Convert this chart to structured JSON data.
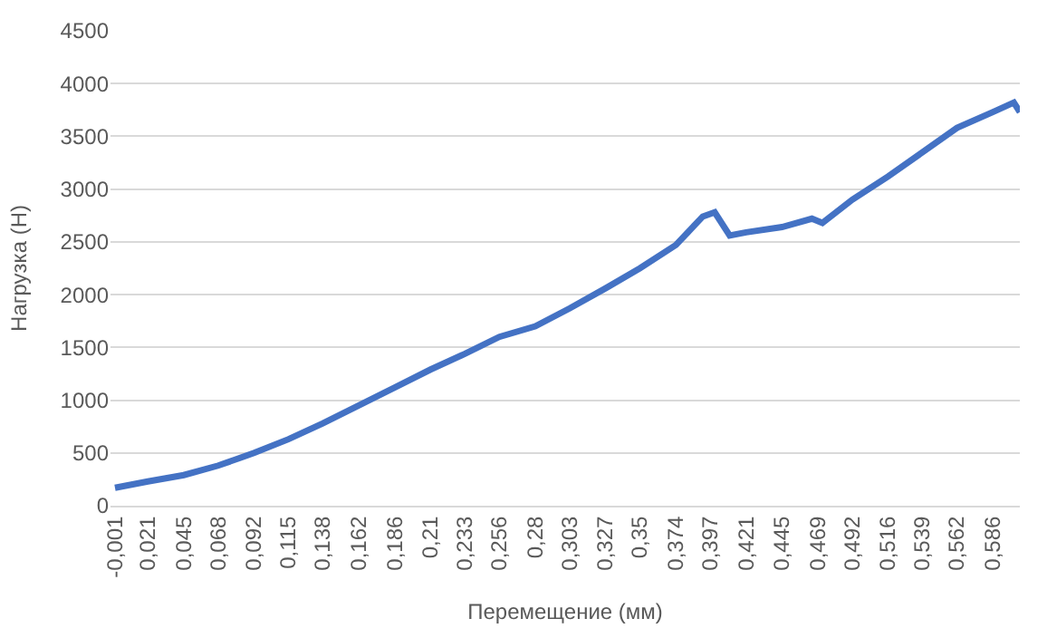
{
  "chart_data": {
    "type": "line",
    "xlabel": "Перемещение (мм)",
    "ylabel": "Нагрузка (Н)",
    "x": [
      -0.001,
      0.021,
      0.045,
      0.068,
      0.092,
      0.115,
      0.138,
      0.162,
      0.186,
      0.21,
      0.233,
      0.256,
      0.28,
      0.303,
      0.327,
      0.35,
      0.374,
      0.392,
      0.4,
      0.41,
      0.421,
      0.445,
      0.465,
      0.472,
      0.492,
      0.516,
      0.539,
      0.562,
      0.586,
      0.6,
      0.604
    ],
    "series": [
      {
        "color": "#4472c4",
        "values": [
          170,
          230,
          290,
          380,
          500,
          630,
          780,
          950,
          1120,
          1290,
          1440,
          1600,
          1700,
          1870,
          2060,
          2250,
          2470,
          2740,
          2780,
          2560,
          2590,
          2640,
          2720,
          2680,
          2900,
          3120,
          3350,
          3580,
          3730,
          3820,
          3730
        ]
      }
    ],
    "xlim": [
      -0.004,
      0.604
    ],
    "xticks": [
      {
        "value": -0.001,
        "label": "-0,001"
      },
      {
        "value": 0.021,
        "label": "0,021"
      },
      {
        "value": 0.045,
        "label": "0,045"
      },
      {
        "value": 0.068,
        "label": "0,068"
      },
      {
        "value": 0.092,
        "label": "0,092"
      },
      {
        "value": 0.115,
        "label": "0,115"
      },
      {
        "value": 0.138,
        "label": "0,138"
      },
      {
        "value": 0.162,
        "label": "0,162"
      },
      {
        "value": 0.186,
        "label": "0,186"
      },
      {
        "value": 0.21,
        "label": "0,21"
      },
      {
        "value": 0.233,
        "label": "0,233"
      },
      {
        "value": 0.256,
        "label": "0,256"
      },
      {
        "value": 0.28,
        "label": "0,28"
      },
      {
        "value": 0.303,
        "label": "0,303"
      },
      {
        "value": 0.327,
        "label": "0,327"
      },
      {
        "value": 0.35,
        "label": "0,35"
      },
      {
        "value": 0.374,
        "label": "0,374"
      },
      {
        "value": 0.397,
        "label": "0,397"
      },
      {
        "value": 0.421,
        "label": "0,421"
      },
      {
        "value": 0.445,
        "label": "0,445"
      },
      {
        "value": 0.469,
        "label": "0,469"
      },
      {
        "value": 0.492,
        "label": "0,492"
      },
      {
        "value": 0.516,
        "label": "0,516"
      },
      {
        "value": 0.539,
        "label": "0,539"
      },
      {
        "value": 0.562,
        "label": "0,562"
      },
      {
        "value": 0.586,
        "label": "0,586"
      }
    ],
    "ylim": [
      0,
      4500
    ],
    "yticks": [
      0,
      500,
      1000,
      1500,
      2000,
      2500,
      3000,
      3500,
      4000,
      4500
    ],
    "grid": "y",
    "marker": "none",
    "line_style": "solid"
  }
}
